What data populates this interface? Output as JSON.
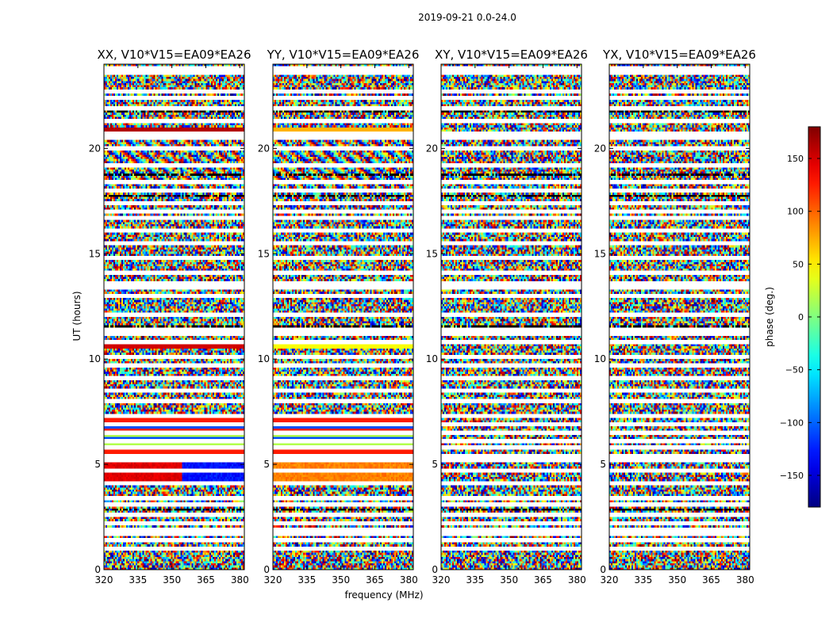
{
  "figure": {
    "suptitle": "2019-09-21 0.0-24.0"
  },
  "chart_data": {
    "type": "heatmap",
    "panels": [
      {
        "title": "XX, V10*V15=EA09*EA26",
        "pol": "XX"
      },
      {
        "title": "YY, V10*V15=EA09*EA26",
        "pol": "YY"
      },
      {
        "title": "XY, V10*V15=EA09*EA26",
        "pol": "XY"
      },
      {
        "title": "YX, V10*V15=EA09*EA26",
        "pol": "YX"
      }
    ],
    "xlabel": "frequency (MHz)",
    "ylabel": "UT (hours)",
    "xlim": [
      320,
      382
    ],
    "ylim": [
      0,
      24
    ],
    "xticks": [
      320,
      335,
      350,
      365,
      380
    ],
    "yticks": [
      0,
      5,
      10,
      15,
      20
    ],
    "colorbar": {
      "label": "phase (deg.)",
      "range": [
        -180,
        180
      ],
      "ticks": [
        150,
        100,
        50,
        0,
        -50,
        -100,
        -150
      ],
      "tick_labels": [
        "150",
        "100",
        "50",
        "0",
        "−50",
        "−100",
        "−150"
      ],
      "colormap": "jet"
    },
    "flagged_rows_hours": [
      0.2,
      0.4,
      1.3,
      1.6,
      2.1,
      2.7,
      3.3,
      3.5,
      4.0,
      4.8,
      5.6,
      6.0,
      6.6,
      7.0,
      7.3,
      7.9,
      8.5,
      9.2,
      9.9,
      10.4,
      10.6,
      11.0,
      11.9,
      12.6,
      12.8,
      13.2,
      13.9,
      14.3,
      14.9,
      15.5,
      16.0,
      16.7,
      17.1,
      17.5,
      17.9,
      18.2,
      18.6,
      18.8,
      19.3,
      19.9,
      20.6,
      20.9,
      21.4,
      21.8,
      22.1,
      22.3,
      22.6,
      23.0
    ],
    "notes": {
      "XX": "coherent phase bands near 4.1-5.1 h and 5.5-7.3 h, 10.7 h, 20.8 h",
      "YY": "coherent phase bands near 4.0-5.0 h and 5.5-7.3 h, 10.6 h, 20.8 h",
      "XY": "noise-like phase",
      "YX": "noise-like phase"
    }
  }
}
